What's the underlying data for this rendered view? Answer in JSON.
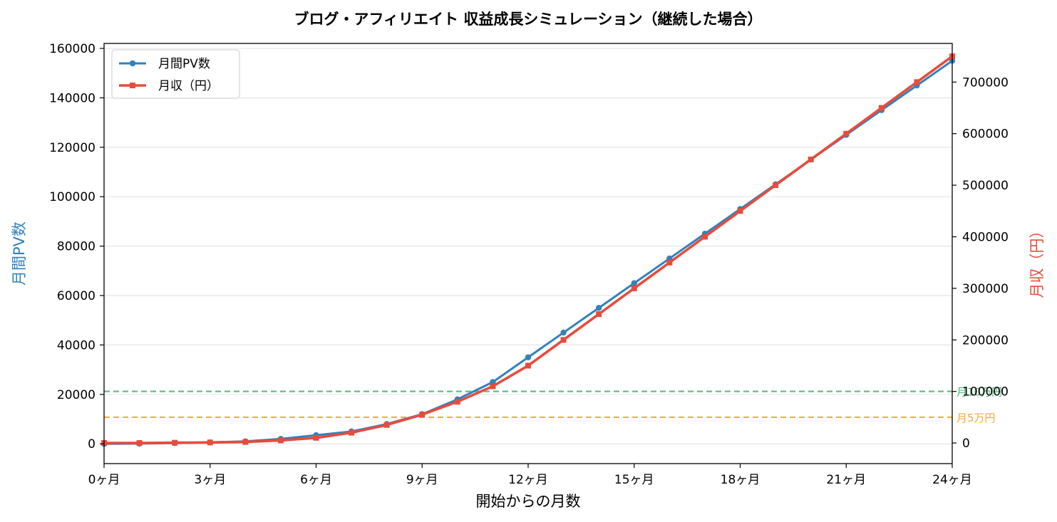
{
  "chart_data": {
    "type": "line",
    "title": "ブログ・アフィリエイト 収益成長シミュレーション（継続した場合）",
    "xlabel": "開始からの月数",
    "ylabel_left": "月間PV数",
    "ylabel_right": "月収（円）",
    "x": [
      0,
      1,
      2,
      3,
      4,
      5,
      6,
      7,
      8,
      9,
      10,
      11,
      12,
      13,
      14,
      15,
      16,
      17,
      18,
      19,
      20,
      21,
      22,
      23,
      24
    ],
    "xlim": [
      0,
      24
    ],
    "x_ticks": [
      0,
      3,
      6,
      9,
      12,
      15,
      18,
      21,
      24
    ],
    "x_tick_labels": [
      "0ヶ月",
      "3ヶ月",
      "6ヶ月",
      "9ヶ月",
      "12ヶ月",
      "15ヶ月",
      "18ヶ月",
      "21ヶ月",
      "24ヶ月"
    ],
    "ylim_left": [
      -8000,
      162000
    ],
    "y_ticks_left": [
      0,
      20000,
      40000,
      60000,
      80000,
      100000,
      120000,
      140000,
      160000
    ],
    "y_tick_labels_left": [
      "0",
      "20000",
      "40000",
      "60000",
      "80000",
      "100000",
      "120000",
      "140000",
      "160000"
    ],
    "ylim_right": [
      -40000,
      775000
    ],
    "y_ticks_right": [
      0,
      100000,
      200000,
      300000,
      400000,
      500000,
      600000,
      700000
    ],
    "y_tick_labels_right": [
      "0",
      "100000",
      "200000",
      "300000",
      "400000",
      "500000",
      "600000",
      "700000"
    ],
    "series": [
      {
        "name": "月間PV数",
        "axis": "left",
        "color": "#3182bd",
        "marker": "circle",
        "values": [
          0,
          100,
          300,
          600,
          1000,
          2000,
          3500,
          5000,
          8000,
          12000,
          18000,
          25000,
          35000,
          45000,
          55000,
          65000,
          75000,
          85000,
          95000,
          105000,
          115000,
          125000,
          135000,
          145000,
          155000
        ]
      },
      {
        "name": "月収（円）",
        "axis": "right",
        "color": "#e74c3c",
        "marker": "square",
        "values": [
          0,
          0,
          500,
          1000,
          2000,
          5000,
          10000,
          20000,
          35000,
          55000,
          80000,
          110000,
          150000,
          200000,
          250000,
          300000,
          350000,
          400000,
          450000,
          500000,
          550000,
          600000,
          650000,
          700000,
          750000
        ]
      }
    ],
    "reference_lines": [
      {
        "label": "月10万円",
        "value": 100000,
        "axis": "right",
        "color": "#52b77a"
      },
      {
        "label": "月5万円",
        "value": 50000,
        "axis": "right",
        "color": "#f4a934"
      }
    ],
    "grid": "horizontal",
    "legend_placement": "top-left"
  }
}
